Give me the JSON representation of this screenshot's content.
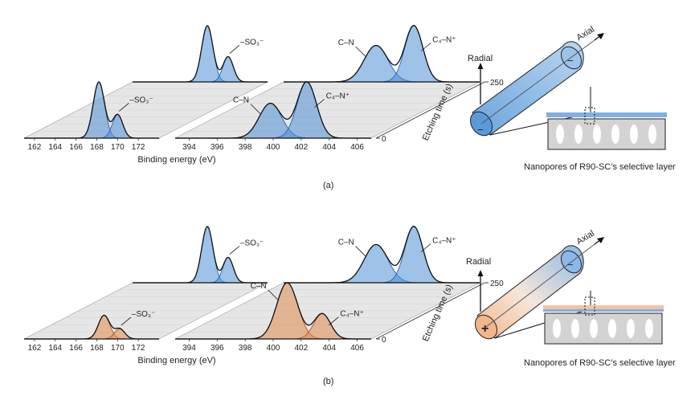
{
  "colors": {
    "blue_fill": "#4f8fd6",
    "blue_light": "#bcd6ef",
    "orange_fill": "#e08a4e",
    "orange_light": "#f4c7a6",
    "plane": "#e6e6e6",
    "plane_edge": "#b0b0b0",
    "envelope": "#111111",
    "fit_line_blue": "#2b63ad",
    "fit_line_orange": "#b55a1f"
  },
  "panel_labels": [
    "(a)",
    "(b)"
  ],
  "captions": {
    "nanopores": "Nanopores of R90-SC’s selective layer",
    "radial": "Radial",
    "axial": "Axial",
    "minus": "−",
    "plus": "+"
  },
  "chart_data": [
    {
      "type": "line",
      "panel": "(a)",
      "title": "",
      "xlabel": "Binding energy (eV)",
      "ylabel": "",
      "zlabel": "Etching time (s)",
      "depth_ticks": [
        "0",
        "250"
      ],
      "s_region": {
        "x_ticks": [
          "162",
          "164",
          "166",
          "168",
          "170",
          "172"
        ],
        "xlim": [
          161,
          174
        ],
        "traces": [
          {
            "etching_time_s": 0,
            "color": "blue",
            "peaks": [
              {
                "center": 168.2,
                "height": 1.0,
                "width": 0.55
              },
              {
                "center": 170.0,
                "height": 0.42,
                "width": 0.5
              }
            ],
            "label": "–SO₃⁻"
          },
          {
            "etching_time_s": 250,
            "color": "blue",
            "peaks": [
              {
                "center": 168.2,
                "height": 1.0,
                "width": 0.55
              },
              {
                "center": 170.2,
                "height": 0.45,
                "width": 0.5
              }
            ],
            "label": "–SO₃⁻"
          }
        ]
      },
      "n_region": {
        "x_ticks": [
          "394",
          "396",
          "398",
          "400",
          "402",
          "404",
          "406"
        ],
        "xlim": [
          393,
          407
        ],
        "traces": [
          {
            "etching_time_s": 0,
            "color": "blue",
            "peaks": [
              {
                "center": 399.8,
                "height": 0.62,
                "width": 0.8
              },
              {
                "center": 402.4,
                "height": 1.0,
                "width": 0.7
              }
            ],
            "labels": [
              "C–N",
              "C₄–N⁺"
            ]
          },
          {
            "etching_time_s": 250,
            "color": "blue",
            "peaks": [
              {
                "center": 399.6,
                "height": 0.65,
                "width": 0.85
              },
              {
                "center": 402.3,
                "height": 1.0,
                "width": 0.65
              }
            ],
            "labels": [
              "C–N",
              "C₄–N⁺"
            ]
          }
        ]
      }
    },
    {
      "type": "line",
      "panel": "(b)",
      "title": "",
      "xlabel": "Binding energy (eV)",
      "ylabel": "",
      "zlabel": "Etching time (s)",
      "depth_ticks": [
        "0",
        "250"
      ],
      "s_region": {
        "x_ticks": [
          "162",
          "164",
          "166",
          "168",
          "170",
          "172"
        ],
        "xlim": [
          161,
          174
        ],
        "traces": [
          {
            "etching_time_s": 0,
            "color": "orange",
            "peaks": [
              {
                "center": 168.7,
                "height": 0.42,
                "width": 0.55
              },
              {
                "center": 170.2,
                "height": 0.18,
                "width": 0.5
              }
            ],
            "label": "–SO₃⁻"
          },
          {
            "etching_time_s": 250,
            "color": "blue",
            "peaks": [
              {
                "center": 168.2,
                "height": 1.0,
                "width": 0.55
              },
              {
                "center": 170.2,
                "height": 0.45,
                "width": 0.5
              }
            ],
            "label": "–SO₃⁻"
          }
        ]
      },
      "n_region": {
        "x_ticks": [
          "394",
          "396",
          "398",
          "400",
          "402",
          "404",
          "406"
        ],
        "xlim": [
          393,
          407
        ],
        "traces": [
          {
            "etching_time_s": 0,
            "color": "orange",
            "peaks": [
              {
                "center": 401.0,
                "height": 1.0,
                "width": 0.75
              },
              {
                "center": 403.5,
                "height": 0.45,
                "width": 0.6
              }
            ],
            "labels": [
              "C–N",
              "C₄–N⁺"
            ]
          },
          {
            "etching_time_s": 250,
            "color": "blue",
            "peaks": [
              {
                "center": 399.6,
                "height": 0.68,
                "width": 0.85
              },
              {
                "center": 402.3,
                "height": 1.0,
                "width": 0.65
              }
            ],
            "labels": [
              "C–N",
              "C₄–N⁺"
            ]
          }
        ]
      }
    }
  ]
}
